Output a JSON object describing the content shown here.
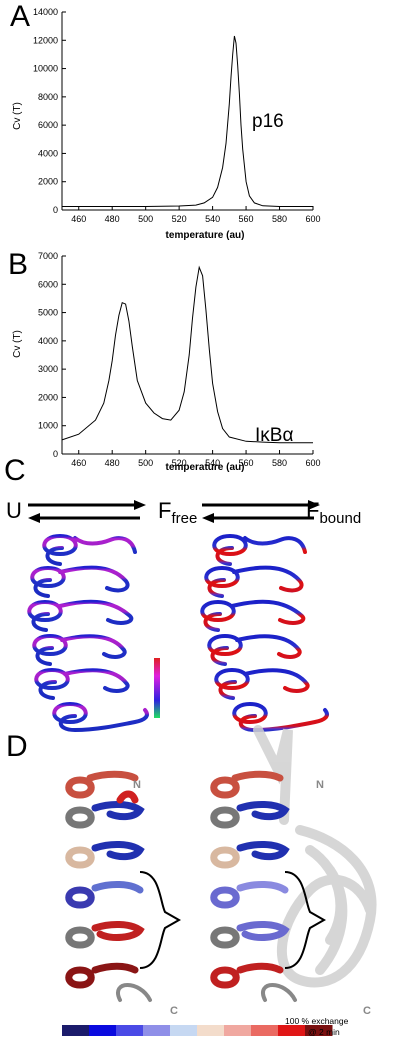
{
  "panels": {
    "a": "A",
    "b": "B",
    "c": "C",
    "d": "D"
  },
  "chart_data": [
    {
      "type": "line",
      "title": "",
      "annotation": "p16",
      "xlabel": "temperature (au)",
      "ylabel": "Cv (T)",
      "xlim": [
        450,
        600
      ],
      "ylim": [
        0,
        14000
      ],
      "xticks": [
        460,
        480,
        500,
        520,
        540,
        560,
        580,
        600
      ],
      "yticks": [
        0,
        2000,
        4000,
        6000,
        8000,
        10000,
        12000,
        14000
      ],
      "x": [
        450,
        500,
        520,
        530,
        535,
        540,
        543,
        546,
        548,
        550,
        551,
        552,
        553,
        554,
        555,
        556,
        557,
        558,
        560,
        562,
        565,
        570,
        580,
        590,
        600
      ],
      "y": [
        250,
        250,
        280,
        350,
        500,
        900,
        1600,
        3000,
        4700,
        7500,
        9400,
        11000,
        12300,
        11800,
        10200,
        8200,
        6000,
        4300,
        2000,
        1000,
        500,
        300,
        250,
        250,
        250
      ]
    },
    {
      "type": "line",
      "title": "",
      "annotation": "IκBα",
      "xlabel": "temperature (au)",
      "ylabel": "Cv (T)",
      "xlim": [
        450,
        600
      ],
      "ylim": [
        0,
        7000
      ],
      "xticks": [
        460,
        480,
        500,
        520,
        540,
        560,
        580,
        600
      ],
      "yticks": [
        0,
        1000,
        2000,
        3000,
        4000,
        5000,
        6000,
        7000
      ],
      "x": [
        450,
        460,
        470,
        475,
        478,
        480,
        482,
        484,
        486,
        488,
        490,
        492,
        495,
        500,
        505,
        510,
        515,
        520,
        523,
        526,
        528,
        530,
        532,
        534,
        536,
        538,
        540,
        543,
        546,
        550,
        560,
        570,
        580,
        590,
        600
      ],
      "y": [
        500,
        700,
        1200,
        1800,
        2600,
        3300,
        4200,
        4900,
        5350,
        5300,
        4700,
        3800,
        2600,
        1800,
        1450,
        1250,
        1200,
        1550,
        2200,
        3500,
        4800,
        5900,
        6600,
        6300,
        5100,
        3700,
        2500,
        1500,
        900,
        600,
        450,
        420,
        400,
        400,
        400
      ]
    }
  ],
  "scheme": {
    "u": "U",
    "f_free": "F",
    "f_free_sub": "free",
    "f_bound": "F",
    "f_bound_sub": "bound"
  },
  "structure_labels": {
    "n_left": "N",
    "n_right": "N",
    "c_left": "C",
    "c_right": "C"
  },
  "colorbar": {
    "colors": [
      "#1b1b6b",
      "#0a0adf",
      "#4a4ae6",
      "#8f8fe8",
      "#c6d8f2",
      "#f3dccb",
      "#f0a8a0",
      "#ea6a62",
      "#e01616",
      "#7a1010"
    ],
    "label_line1": "100 % exchange",
    "label_line2": "@ 2 min"
  }
}
